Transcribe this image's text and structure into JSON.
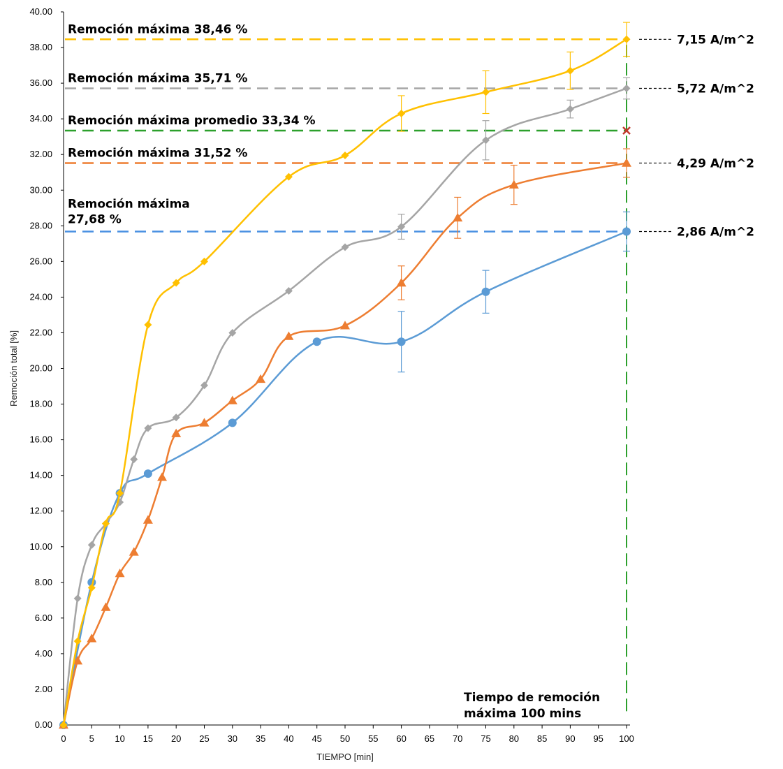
{
  "chart_data": {
    "type": "line",
    "xlabel": "TIEMPO [min]",
    "ylabel": "Remoción total [%]",
    "ylim": [
      0,
      40
    ],
    "xticks": [
      0,
      5,
      10,
      15,
      20,
      25,
      30,
      35,
      40,
      45,
      50,
      55,
      60,
      65,
      70,
      75,
      80,
      85,
      90,
      95,
      100
    ],
    "yticks": [
      "0.00",
      "2.00",
      "4.00",
      "6.00",
      "8.00",
      "10.00",
      "12.00",
      "14.00",
      "16.00",
      "18.00",
      "20.00",
      "22.00",
      "24.00",
      "26.00",
      "28.00",
      "30.00",
      "32.00",
      "34.00",
      "36.00",
      "38.00",
      "40.00"
    ],
    "grid": false,
    "series": [
      {
        "color": "#5b9bd5",
        "marker": "circle",
        "x": [
          0,
          5,
          10,
          15,
          30,
          45,
          60,
          75,
          100
        ],
        "y": [
          0,
          8.0,
          13.0,
          14.1,
          16.95,
          21.5,
          21.5,
          24.3,
          27.68
        ],
        "err": [
          0,
          0,
          0,
          0,
          0,
          0,
          1.7,
          1.2,
          1.1
        ]
      },
      {
        "color": "#ed7d31",
        "marker": "triangle",
        "x": [
          0,
          2.5,
          5,
          7.5,
          10,
          12.5,
          15,
          17.5,
          20,
          25,
          30,
          35,
          40,
          50,
          60,
          70,
          80,
          100
        ],
        "y": [
          0,
          3.6,
          4.85,
          6.6,
          8.5,
          9.7,
          11.5,
          13.9,
          16.35,
          16.95,
          18.2,
          19.4,
          21.8,
          22.4,
          24.8,
          28.45,
          30.3,
          31.52
        ],
        "err": [
          0,
          0,
          0,
          0,
          0,
          0,
          0,
          0,
          0,
          0,
          0,
          0,
          0,
          0,
          0.95,
          1.15,
          1.1,
          0.8
        ]
      },
      {
        "color": "#a5a5a5",
        "marker": "diamond",
        "x": [
          0,
          2.5,
          5,
          7.5,
          10,
          12.5,
          15,
          20,
          25,
          30,
          40,
          50,
          60,
          75,
          90,
          100
        ],
        "y": [
          0,
          7.1,
          10.1,
          11.3,
          12.5,
          14.9,
          16.65,
          17.25,
          19.05,
          22.0,
          24.35,
          26.8,
          27.95,
          32.8,
          34.55,
          35.71
        ],
        "err": [
          0,
          0,
          0,
          0,
          0,
          0,
          0,
          0,
          0,
          0,
          0,
          0,
          0.7,
          1.1,
          0.5,
          0.6
        ]
      },
      {
        "color": "#ffc000",
        "marker": "diamond",
        "x": [
          0,
          2.5,
          5,
          7.5,
          10,
          15,
          20,
          25,
          40,
          50,
          60,
          75,
          90,
          100
        ],
        "y": [
          0,
          4.7,
          7.7,
          11.3,
          13.0,
          22.45,
          24.8,
          26.0,
          30.75,
          31.95,
          34.3,
          35.5,
          36.7,
          38.46
        ],
        "err": [
          0,
          0,
          0,
          0,
          0,
          0,
          0,
          0,
          0,
          0,
          1.0,
          1.2,
          1.05,
          0.95
        ]
      }
    ],
    "reference_lines": [
      {
        "y": 38.46,
        "color": "#ffc000",
        "label": "Remoción máxima 38,46 %",
        "right_label": "7,15 A/m^2"
      },
      {
        "y": 35.71,
        "color": "#a5a5a5",
        "label": "Remoción máxima 35,71 %",
        "right_label": "5,72 A/m^2"
      },
      {
        "y": 33.34,
        "color": "#2ca02c",
        "label": "Remoción máxima promedio 33,34 %",
        "right_label": ""
      },
      {
        "y": 31.52,
        "color": "#ed7d31",
        "label": "Remoción máxima 31,52 %",
        "right_label": "4,29 A/m^2"
      },
      {
        "y": 27.68,
        "color": "#4a90e2",
        "label_lines": [
          "Remoción máxima",
          "27,68 %"
        ],
        "right_label": "2,86 A/m^2"
      }
    ],
    "vertical_line": {
      "x": 100,
      "color": "#2ca02c"
    },
    "average_marker": {
      "x": 100,
      "y": 33.34,
      "symbol": "x",
      "color": "#c0392b"
    },
    "bottom_annotation": [
      "Tiempo de remoción",
      "máxima 100 mins"
    ]
  }
}
